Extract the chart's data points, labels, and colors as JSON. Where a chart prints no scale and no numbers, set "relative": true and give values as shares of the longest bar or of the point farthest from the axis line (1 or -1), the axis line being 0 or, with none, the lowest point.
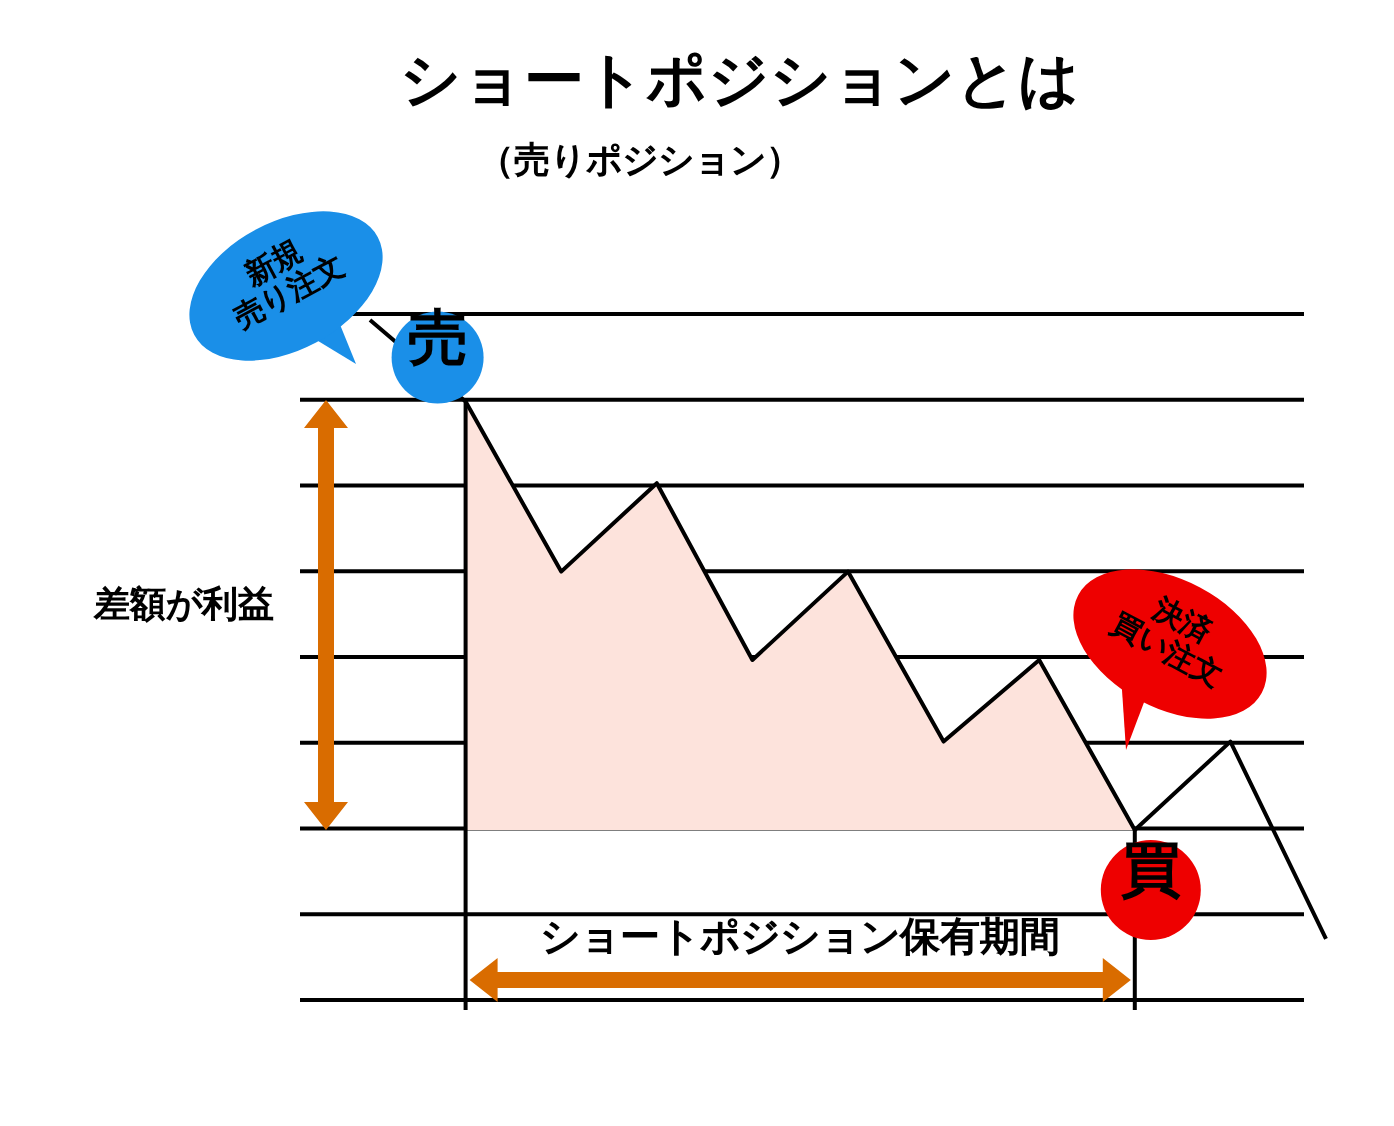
{
  "chart_data": {
    "type": "line",
    "title": "ショートポジションとは",
    "subtitle": "（売りポジション）",
    "relative": true,
    "grid": true,
    "categories": [
      null,
      null,
      null,
      null,
      null,
      null,
      null,
      null,
      null,
      null,
      null
    ],
    "series": [
      {
        "type": "area",
        "color": "#fde3dc",
        "values": [
          null,
          0.88,
          0.63,
          0.76,
          0.5,
          0.63,
          0.38,
          0.5,
          0.25,
          null,
          null
        ]
      },
      {
        "type": "line",
        "color": "#000000",
        "values": [
          1,
          0.88,
          0.63,
          0.76,
          0.5,
          0.63,
          0.38,
          0.5,
          0.25,
          0.38,
          0.09
        ]
      }
    ],
    "annotations": [
      "新規\n売り注文",
      "売",
      "差額が利益",
      "決済\n買い注文",
      "買",
      "ショートポジション保有期間"
    ]
  }
}
